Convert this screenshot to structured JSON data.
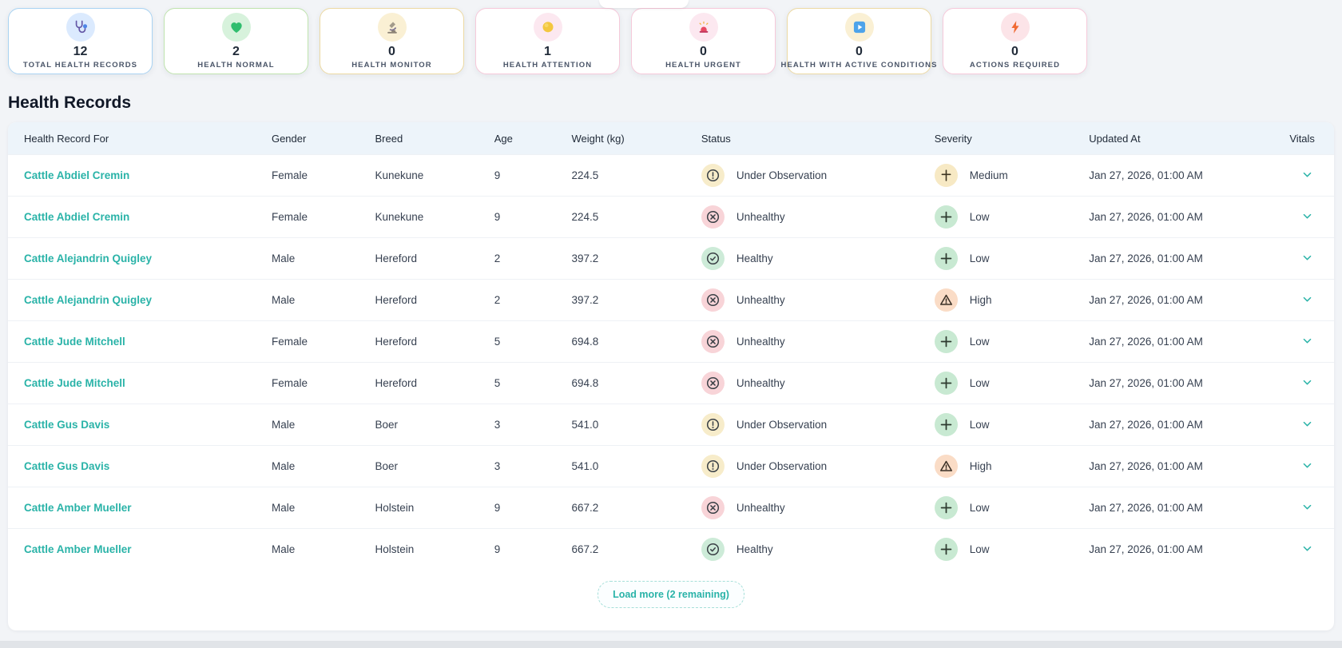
{
  "page": {
    "title": "Health Records",
    "load_more_label": "Load more (2 remaining)"
  },
  "colors": {
    "accent_teal": "#2ab3a8",
    "header_bg": "#edf4fa",
    "status_styles": {
      "observation": "#f7ecca",
      "unhealthy": "#f8d4d8",
      "healthy": "#cdebd8",
      "low": "#c8e9d2",
      "medium": "#f7e9c4",
      "high": "#fadcc6"
    }
  },
  "stats": [
    {
      "value": "12",
      "label": "Total Health Records",
      "icon": "stethoscope-icon",
      "icon_bg": "#dbeafe",
      "border": "#a9d3f2"
    },
    {
      "value": "2",
      "label": "Health Normal",
      "icon": "heart-icon",
      "icon_bg": "#d7f2dc",
      "border": "#bfe3ae"
    },
    {
      "value": "0",
      "label": "Health Monitor",
      "icon": "microscope-icon",
      "icon_bg": "#faf0d4",
      "border": "#ecd9a3"
    },
    {
      "value": "1",
      "label": "Health Attention",
      "icon": "circle-icon",
      "icon_bg": "#fce8f0",
      "border": "#f6c9da"
    },
    {
      "value": "0",
      "label": "Health Urgent",
      "icon": "siren-icon",
      "icon_bg": "#fce8f0",
      "border": "#f6c9da"
    },
    {
      "value": "0",
      "label": "Health With Active Conditions",
      "icon": "play-icon",
      "icon_bg": "#faf0d4",
      "border": "#ecd9a3"
    },
    {
      "value": "0",
      "label": "Actions Required",
      "icon": "lightning-icon",
      "icon_bg": "#fce4e8",
      "border": "#f6c9da"
    }
  ],
  "table": {
    "columns": [
      "Health Record For",
      "Gender",
      "Breed",
      "Age",
      "Weight (kg)",
      "Status",
      "Severity",
      "Updated At",
      "Vitals"
    ],
    "rows": [
      {
        "name": "Cattle Abdiel Cremin",
        "gender": "Female",
        "breed": "Kunekune",
        "age": "9",
        "weight": "224.5",
        "status": "Under Observation",
        "status_key": "observation",
        "severity": "Medium",
        "severity_key": "medium",
        "updated": "Jan 27, 2026, 01:00 AM"
      },
      {
        "name": "Cattle Abdiel Cremin",
        "gender": "Female",
        "breed": "Kunekune",
        "age": "9",
        "weight": "224.5",
        "status": "Unhealthy",
        "status_key": "unhealthy",
        "severity": "Low",
        "severity_key": "low",
        "updated": "Jan 27, 2026, 01:00 AM"
      },
      {
        "name": "Cattle Alejandrin Quigley",
        "gender": "Male",
        "breed": "Hereford",
        "age": "2",
        "weight": "397.2",
        "status": "Healthy",
        "status_key": "healthy",
        "severity": "Low",
        "severity_key": "low",
        "updated": "Jan 27, 2026, 01:00 AM"
      },
      {
        "name": "Cattle Alejandrin Quigley",
        "gender": "Male",
        "breed": "Hereford",
        "age": "2",
        "weight": "397.2",
        "status": "Unhealthy",
        "status_key": "unhealthy",
        "severity": "High",
        "severity_key": "high",
        "updated": "Jan 27, 2026, 01:00 AM"
      },
      {
        "name": "Cattle Jude Mitchell",
        "gender": "Female",
        "breed": "Hereford",
        "age": "5",
        "weight": "694.8",
        "status": "Unhealthy",
        "status_key": "unhealthy",
        "severity": "Low",
        "severity_key": "low",
        "updated": "Jan 27, 2026, 01:00 AM"
      },
      {
        "name": "Cattle Jude Mitchell",
        "gender": "Female",
        "breed": "Hereford",
        "age": "5",
        "weight": "694.8",
        "status": "Unhealthy",
        "status_key": "unhealthy",
        "severity": "Low",
        "severity_key": "low",
        "updated": "Jan 27, 2026, 01:00 AM"
      },
      {
        "name": "Cattle Gus Davis",
        "gender": "Male",
        "breed": "Boer",
        "age": "3",
        "weight": "541.0",
        "status": "Under Observation",
        "status_key": "observation",
        "severity": "Low",
        "severity_key": "low",
        "updated": "Jan 27, 2026, 01:00 AM"
      },
      {
        "name": "Cattle Gus Davis",
        "gender": "Male",
        "breed": "Boer",
        "age": "3",
        "weight": "541.0",
        "status": "Under Observation",
        "status_key": "observation",
        "severity": "High",
        "severity_key": "high",
        "updated": "Jan 27, 2026, 01:00 AM"
      },
      {
        "name": "Cattle Amber Mueller",
        "gender": "Male",
        "breed": "Holstein",
        "age": "9",
        "weight": "667.2",
        "status": "Unhealthy",
        "status_key": "unhealthy",
        "severity": "Low",
        "severity_key": "low",
        "updated": "Jan 27, 2026, 01:00 AM"
      },
      {
        "name": "Cattle Amber Mueller",
        "gender": "Male",
        "breed": "Holstein",
        "age": "9",
        "weight": "667.2",
        "status": "Healthy",
        "status_key": "healthy",
        "severity": "Low",
        "severity_key": "low",
        "updated": "Jan 27, 2026, 01:00 AM"
      }
    ]
  }
}
